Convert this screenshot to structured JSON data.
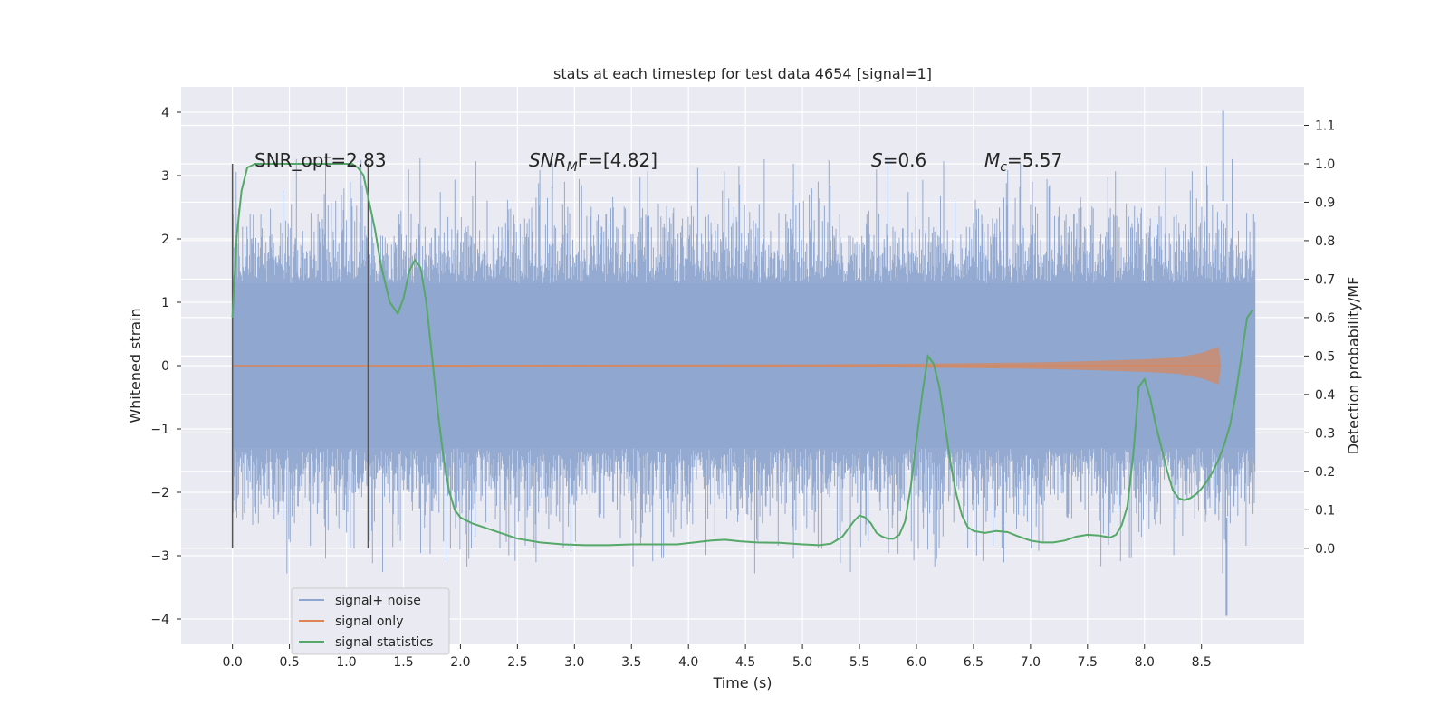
{
  "chart_data": {
    "type": "line",
    "title": "stats at each timestep for test data 4654 [signal=1]",
    "xlabel": "Time (s)",
    "ylabel": "Whitened strain",
    "y2label": "Detection probability/MF",
    "xlim": [
      -0.45,
      9.4
    ],
    "ylim": [
      -4.4,
      4.4
    ],
    "y2lim": [
      -0.25,
      1.2
    ],
    "x_ticks": [
      0.0,
      0.5,
      1.0,
      1.5,
      2.0,
      2.5,
      3.0,
      3.5,
      4.0,
      4.5,
      5.0,
      5.5,
      6.0,
      6.5,
      7.0,
      7.5,
      8.0,
      8.5
    ],
    "x_tick_labels": [
      "0.0",
      "0.5",
      "1.0",
      "1.5",
      "2.0",
      "2.5",
      "3.0",
      "3.5",
      "4.0",
      "4.5",
      "5.0",
      "5.5",
      "6.0",
      "6.5",
      "7.0",
      "7.5",
      "8.0",
      "8.5"
    ],
    "y_ticks": [
      -4,
      -3,
      -2,
      -1,
      0,
      1,
      2,
      3,
      4
    ],
    "y_tick_labels": [
      "−4",
      "−3",
      "−2",
      "−1",
      "0",
      "1",
      "2",
      "3",
      "4"
    ],
    "y2_ticks": [
      0.0,
      0.1,
      0.2,
      0.3,
      0.4,
      0.5,
      0.6,
      0.7,
      0.8,
      0.9,
      1.0,
      1.1
    ],
    "y2_tick_labels": [
      "0.0",
      "0.1",
      "0.2",
      "0.3",
      "0.4",
      "0.5",
      "0.6",
      "0.7",
      "0.8",
      "0.9",
      "1.0",
      "1.1"
    ],
    "grid": true,
    "legend_position": "bottom-left",
    "annotations": {
      "snr_opt": "SNR_opt=2.83",
      "snr_mf_base": "SNR",
      "snr_mf_sub": "M",
      "snr_mf_rest": "F=[4.82]",
      "s_italic": "S",
      "s_rest": "=0.6",
      "mc_base": "M",
      "mc_sub": "c",
      "mc_rest": "=5.57"
    },
    "vertical_lines": [
      0.0,
      1.19
    ],
    "series": [
      {
        "name": "signal+ noise",
        "color": "#8fa6cf",
        "x_range": [
          0.0,
          8.97
        ],
        "core_band": [
          -1.3,
          1.3
        ],
        "max_extent": [
          -3.95,
          4.02
        ]
      },
      {
        "name": "signal only",
        "color": "#dd8452",
        "envelope": {
          "x": [
            0.0,
            5.0,
            6.0,
            7.0,
            7.5,
            8.0,
            8.3,
            8.5,
            8.65,
            8.67
          ],
          "amp": [
            0.01,
            0.02,
            0.03,
            0.05,
            0.07,
            0.1,
            0.13,
            0.2,
            0.3,
            0.0
          ]
        }
      },
      {
        "name": "signal statistics",
        "color": "#55a868",
        "x": [
          0.0,
          0.04,
          0.08,
          0.13,
          0.2,
          0.3,
          0.5,
          0.7,
          0.9,
          1.0,
          1.05,
          1.1,
          1.15,
          1.2,
          1.25,
          1.3,
          1.38,
          1.45,
          1.5,
          1.55,
          1.6,
          1.65,
          1.7,
          1.75,
          1.8,
          1.85,
          1.9,
          1.95,
          2.0,
          2.1,
          2.2,
          2.35,
          2.5,
          2.7,
          2.9,
          3.1,
          3.3,
          3.5,
          3.7,
          3.9,
          4.05,
          4.2,
          4.32,
          4.45,
          4.6,
          4.8,
          5.0,
          5.15,
          5.25,
          5.35,
          5.45,
          5.5,
          5.55,
          5.6,
          5.65,
          5.7,
          5.75,
          5.8,
          5.85,
          5.9,
          5.95,
          6.0,
          6.05,
          6.1,
          6.15,
          6.2,
          6.25,
          6.3,
          6.35,
          6.4,
          6.45,
          6.5,
          6.6,
          6.7,
          6.8,
          6.9,
          7.0,
          7.1,
          7.2,
          7.3,
          7.4,
          7.5,
          7.6,
          7.7,
          7.75,
          7.8,
          7.85,
          7.9,
          7.95,
          8.0,
          8.05,
          8.1,
          8.15,
          8.2,
          8.25,
          8.3,
          8.35,
          8.4,
          8.45,
          8.5,
          8.55,
          8.6,
          8.65,
          8.7,
          8.75,
          8.8,
          8.85,
          8.9,
          8.95
        ],
        "y": [
          0.6,
          0.82,
          0.93,
          0.99,
          1.0,
          1.0,
          1.0,
          1.0,
          1.0,
          1.0,
          1.0,
          0.99,
          0.97,
          0.9,
          0.83,
          0.74,
          0.64,
          0.61,
          0.65,
          0.72,
          0.75,
          0.73,
          0.64,
          0.5,
          0.36,
          0.24,
          0.15,
          0.1,
          0.08,
          0.065,
          0.055,
          0.04,
          0.025,
          0.015,
          0.01,
          0.008,
          0.008,
          0.01,
          0.01,
          0.01,
          0.015,
          0.02,
          0.022,
          0.018,
          0.015,
          0.014,
          0.01,
          0.008,
          0.012,
          0.03,
          0.07,
          0.085,
          0.08,
          0.065,
          0.04,
          0.03,
          0.025,
          0.025,
          0.035,
          0.07,
          0.16,
          0.28,
          0.4,
          0.5,
          0.48,
          0.42,
          0.32,
          0.22,
          0.14,
          0.085,
          0.055,
          0.045,
          0.04,
          0.045,
          0.042,
          0.03,
          0.02,
          0.015,
          0.015,
          0.02,
          0.03,
          0.035,
          0.033,
          0.028,
          0.035,
          0.06,
          0.11,
          0.24,
          0.42,
          0.44,
          0.39,
          0.32,
          0.26,
          0.2,
          0.15,
          0.13,
          0.125,
          0.13,
          0.14,
          0.155,
          0.175,
          0.2,
          0.23,
          0.27,
          0.32,
          0.4,
          0.5,
          0.6,
          0.62
        ]
      }
    ]
  }
}
